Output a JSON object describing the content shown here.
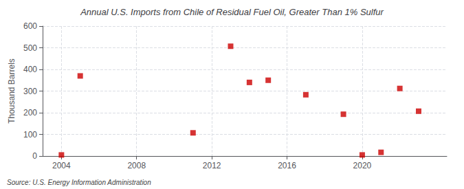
{
  "chart_data": {
    "type": "scatter",
    "title": "Annual U.S. Imports from Chile of Residual Fuel Oil, Greater Than 1% Sulfur",
    "ylabel": "Thousand Barrels",
    "source": "Source: U.S. Energy Information Administration",
    "x": [
      2004,
      2005,
      2011,
      2013,
      2014,
      2015,
      2017,
      2019,
      2020,
      2021,
      2022,
      2023
    ],
    "values": [
      5,
      370,
      107,
      507,
      340,
      350,
      283,
      193,
      5,
      17,
      312,
      207
    ],
    "color": "#cc0000",
    "marker": "square",
    "xlim": [
      2003.0,
      2024.5
    ],
    "xticks": [
      2004,
      2008,
      2012,
      2016,
      2020
    ],
    "ylim": [
      0,
      600
    ],
    "yticks": [
      0,
      100,
      200,
      300,
      400,
      500,
      600
    ],
    "grid": true
  }
}
